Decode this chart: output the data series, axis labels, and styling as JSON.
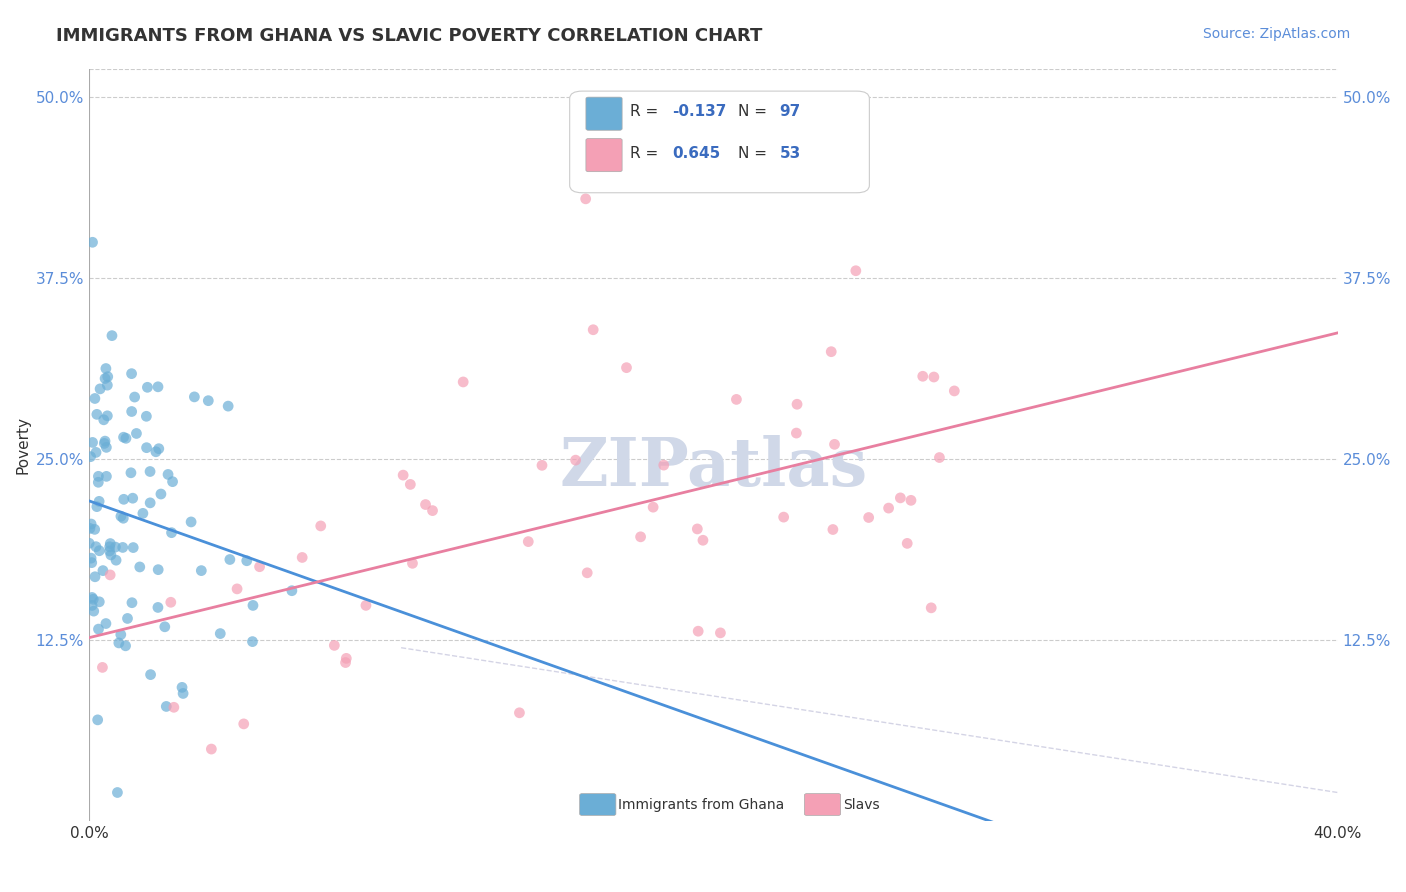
{
  "title": "IMMIGRANTS FROM GHANA VS SLAVIC POVERTY CORRELATION CHART",
  "source": "Source: ZipAtlas.com",
  "xlabel": "",
  "ylabel": "Poverty",
  "x_tick_labels": [
    "0.0%",
    "40.0%"
  ],
  "y_tick_labels": [
    "12.5%",
    "25.0%",
    "37.5%",
    "50.0%"
  ],
  "xlim": [
    0.0,
    0.4
  ],
  "ylim": [
    0.0,
    0.52
  ],
  "y_axis_ticks": [
    0.125,
    0.25,
    0.375,
    0.5
  ],
  "x_axis_ticks": [
    0.0,
    0.4
  ],
  "ghana_R": -0.137,
  "ghana_N": 97,
  "slavs_R": 0.645,
  "slavs_N": 53,
  "ghana_color": "#6baed6",
  "slavs_color": "#f4a0b5",
  "ghana_line_color": "#4a90d9",
  "slavs_line_color": "#e87fa0",
  "legend_r_color": "#3a6bbf",
  "legend_n_color": "#3a6bbf",
  "grid_color": "#cccccc",
  "watermark_text": "ZIPatlas",
  "watermark_color": "#d0d8e8",
  "title_fontsize": 13,
  "source_fontsize": 10,
  "axis_label_fontsize": 11,
  "tick_fontsize": 11
}
